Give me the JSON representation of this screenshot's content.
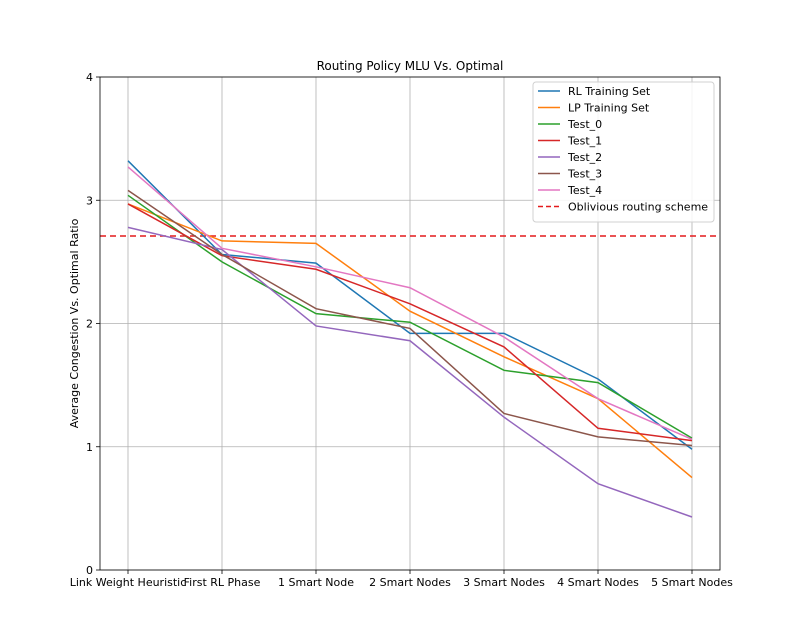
{
  "chart_data": {
    "type": "line",
    "title": "Routing Policy MLU Vs. Optimal",
    "xlabel": "",
    "ylabel": "Average Congestion Vs. Optimal Ratio",
    "categories": [
      "Link Weight Heuristic",
      "First RL Phase",
      "1 Smart Node",
      "2 Smart Nodes",
      "3 Smart Nodes",
      "4 Smart Nodes",
      "5 Smart Nodes"
    ],
    "ylim": [
      0,
      4
    ],
    "yticks": [
      "0",
      "1",
      "2",
      "3",
      "4"
    ],
    "grid": true,
    "legend_position": "top-right",
    "series": [
      {
        "name": "RL Training Set",
        "color": "#1f77b4",
        "values": [
          3.32,
          2.56,
          2.49,
          1.92,
          1.92,
          1.55,
          0.98
        ]
      },
      {
        "name": "LP Training Set",
        "color": "#ff7f0e",
        "values": [
          2.97,
          2.67,
          2.65,
          2.1,
          1.73,
          1.39,
          0.75
        ]
      },
      {
        "name": "Test_0",
        "color": "#2ca02c",
        "values": [
          3.04,
          2.5,
          2.08,
          2.01,
          1.62,
          1.52,
          1.07
        ]
      },
      {
        "name": "Test_1",
        "color": "#d62728",
        "values": [
          2.97,
          2.55,
          2.44,
          2.16,
          1.81,
          1.15,
          1.05
        ]
      },
      {
        "name": "Test_2",
        "color": "#9467bd",
        "values": [
          2.78,
          2.6,
          1.98,
          1.86,
          1.24,
          0.7,
          0.43
        ]
      },
      {
        "name": "Test_3",
        "color": "#8c564b",
        "values": [
          3.08,
          2.56,
          2.12,
          1.96,
          1.27,
          1.08,
          1.01
        ]
      },
      {
        "name": "Test_4",
        "color": "#e377c2",
        "values": [
          3.27,
          2.61,
          2.46,
          2.29,
          1.89,
          1.39,
          1.06
        ]
      }
    ],
    "reference_line": {
      "name": "Oblivious routing scheme",
      "value": 2.71,
      "color": "#e41a1c",
      "style": "dashed"
    }
  }
}
